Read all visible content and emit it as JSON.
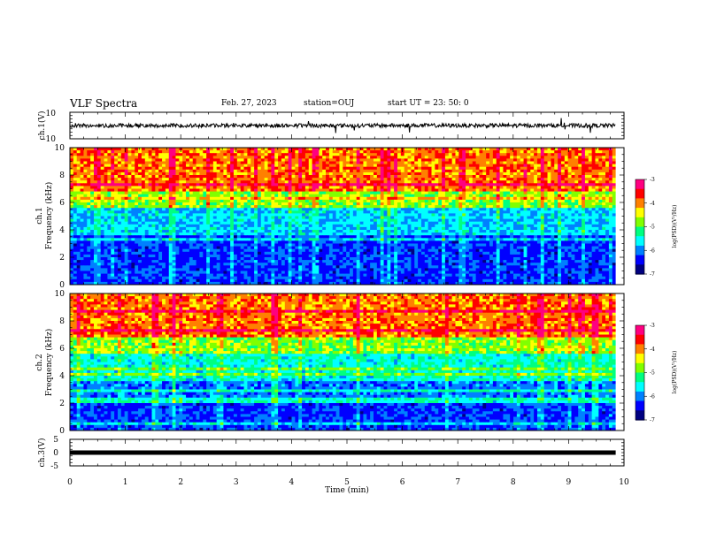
{
  "header": {
    "title": "VLF Spectra",
    "date": "Feb. 27, 2023",
    "station": "station=OUJ",
    "start": "start  UT  =   23: 50: 0"
  },
  "chart_data": [
    {
      "type": "line",
      "id": "ch1-waveform",
      "ylabel": "ch.1(V)",
      "ylim": [
        -10,
        10
      ],
      "y_ticks": [
        "10",
        "-10"
      ],
      "baseline": 0,
      "xlim": [
        0,
        10
      ],
      "data_span_min": [
        0,
        9.85
      ]
    },
    {
      "type": "heatmap",
      "id": "ch1-spectrogram",
      "ylabel_line1": "ch.1",
      "ylabel_line2": "Frequency (kHz)",
      "y_ticks": [
        "0",
        "2",
        "4",
        "6",
        "8",
        "10"
      ],
      "ylim": [
        0,
        10
      ],
      "xlim": [
        0,
        10
      ],
      "colorbar": {
        "label": "log(PSD)(V²/Hz)",
        "ticks": [
          "-3",
          "-4",
          "-5",
          "-6",
          "-7"
        ],
        "range": [
          -7,
          -3
        ]
      }
    },
    {
      "type": "heatmap",
      "id": "ch2-spectrogram",
      "ylabel_line1": "ch.2",
      "ylabel_line2": "Frequency (kHz)",
      "y_ticks": [
        "0",
        "2",
        "4",
        "6",
        "8",
        "10"
      ],
      "ylim": [
        0,
        10
      ],
      "xlim": [
        0,
        10
      ],
      "colorbar": {
        "label": "log(PSD)(V²/Hz)",
        "ticks": [
          "-3",
          "-4",
          "-5",
          "-6",
          "-7"
        ],
        "range": [
          -7,
          -3
        ]
      }
    },
    {
      "type": "line",
      "id": "ch3-waveform",
      "ylabel": "ch.3(V)",
      "ylim": [
        -5,
        5
      ],
      "y_ticks": [
        "5",
        "0",
        "-5"
      ],
      "baseline": 0,
      "xlim": [
        0,
        10
      ],
      "data_span_min": [
        0,
        9.85
      ]
    }
  ],
  "x_axis": {
    "label": "Time (min)",
    "ticks": [
      "0",
      "1",
      "2",
      "3",
      "4",
      "5",
      "6",
      "7",
      "8",
      "9",
      "10"
    ]
  },
  "colormap": [
    "#000080",
    "#0000ff",
    "#0080ff",
    "#00ffff",
    "#00ff80",
    "#80ff00",
    "#ffff00",
    "#ff8000",
    "#ff0000",
    "#ff0080",
    "#ffffff"
  ]
}
